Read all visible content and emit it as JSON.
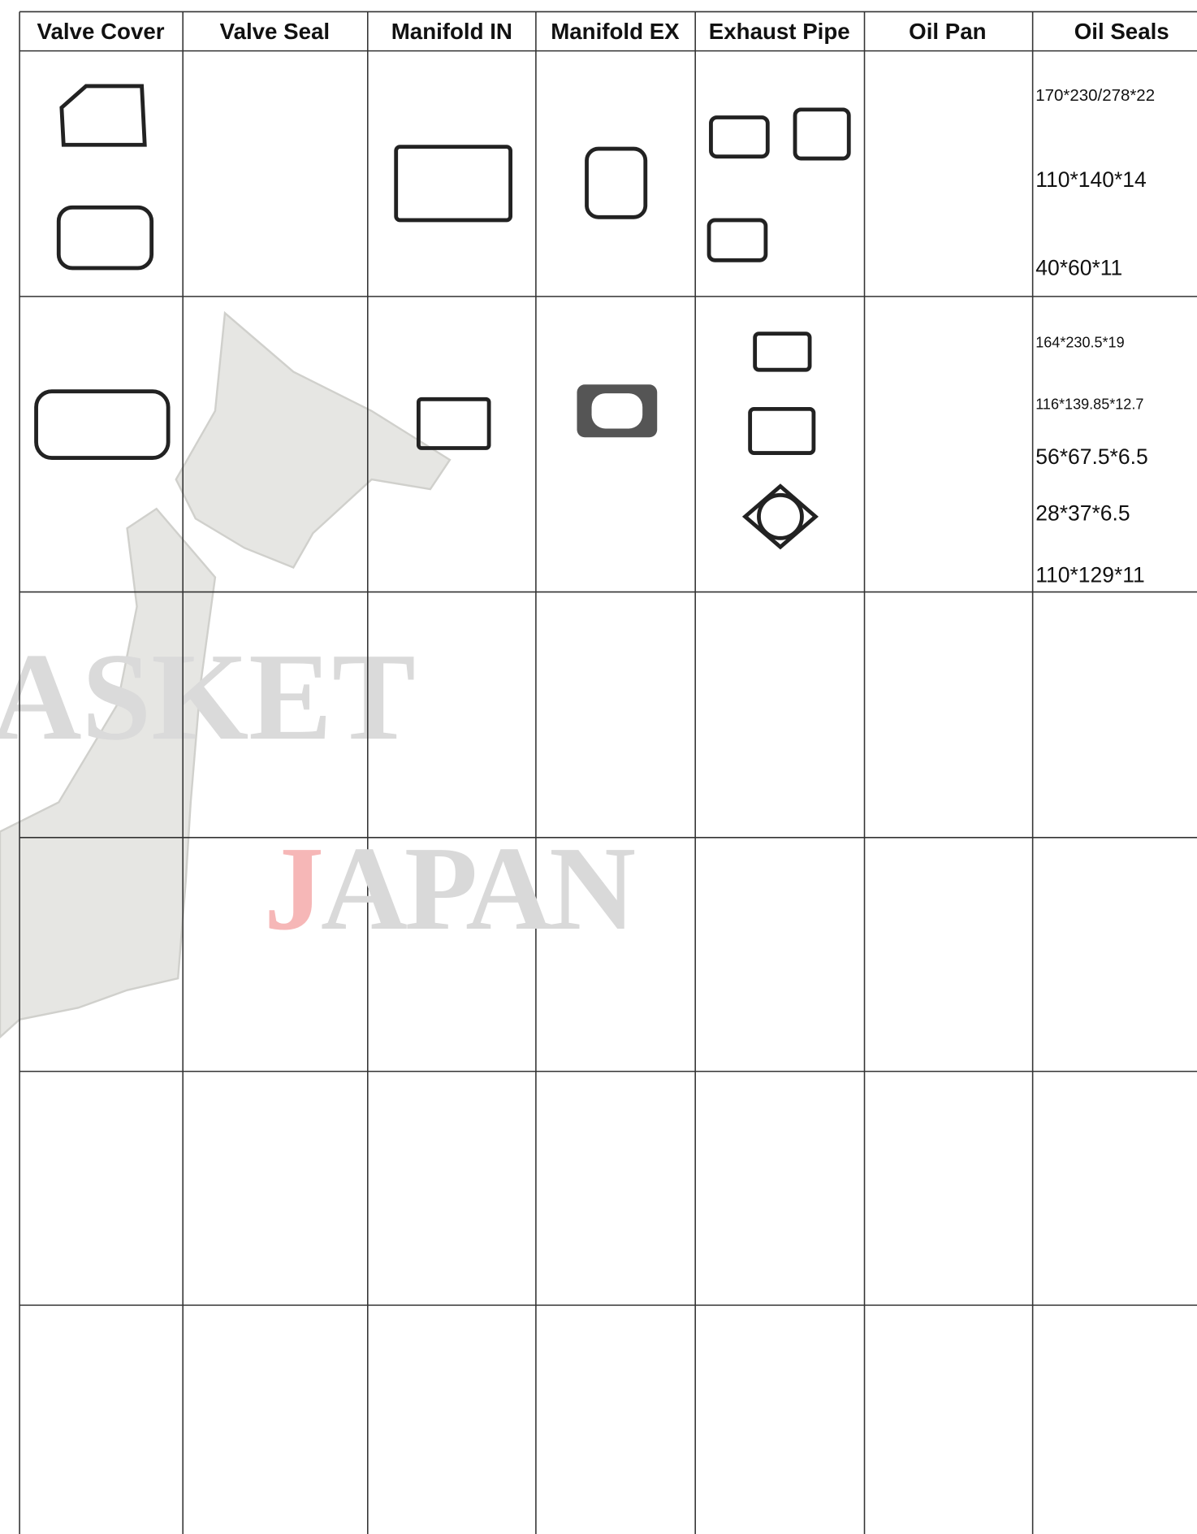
{
  "table": {
    "columns": [
      "Valve Cover",
      "Valve Seal",
      "Manifold IN",
      "Manifold EX",
      "Exhaust Pipe",
      "Oil Pan",
      "Oil Seals"
    ],
    "oil_seals": [
      [
        "170*230/278*22",
        "110*140*14",
        "40*60*11"
      ],
      [
        "164*230.5*19",
        "116*139.85*12.7",
        "56*67.5*6.5",
        "28*37*6.5",
        "110*129*11"
      ]
    ]
  },
  "watermark": {
    "line1": "ASKET",
    "line2": "JAPAN"
  }
}
